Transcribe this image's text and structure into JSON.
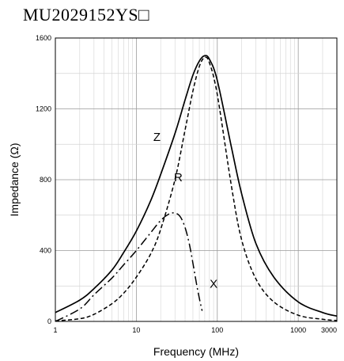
{
  "title": "MU2029152YS□",
  "chart_data": {
    "type": "line",
    "xlabel": "Frequency (MHz)",
    "ylabel": "Impedance (Ω)",
    "xscale": "log",
    "xlim": [
      1,
      3000
    ],
    "ylim": [
      0,
      1600
    ],
    "grid": true,
    "x_ticks": [
      1,
      10,
      100,
      1000,
      3000
    ],
    "x_tick_labels": [
      "1",
      "10",
      "100",
      "1000",
      "3000"
    ],
    "y_ticks": [
      0,
      400,
      800,
      1200,
      1600
    ],
    "y_tick_labels": [
      "0",
      "400",
      "800",
      "1200",
      "1600"
    ],
    "series": [
      {
        "name": "Z",
        "style": "solid",
        "x": [
          1,
          2,
          3,
          5,
          7,
          10,
          15,
          20,
          30,
          40,
          50,
          60,
          70,
          80,
          100,
          150,
          200,
          300,
          500,
          1000,
          2000,
          3000
        ],
        "y": [
          50,
          120,
          185,
          290,
          390,
          510,
          680,
          830,
          1060,
          1250,
          1390,
          1470,
          1500,
          1480,
          1360,
          980,
          720,
          440,
          250,
          110,
          50,
          30
        ]
      },
      {
        "name": "R",
        "style": "dashed",
        "x": [
          1,
          2,
          3,
          5,
          7,
          10,
          15,
          20,
          30,
          40,
          50,
          60,
          70,
          80,
          100,
          150,
          200,
          300,
          500,
          1000,
          2000,
          3000
        ],
        "y": [
          3,
          15,
          40,
          100,
          160,
          250,
          380,
          520,
          800,
          1080,
          1300,
          1440,
          1490,
          1460,
          1280,
          760,
          460,
          240,
          110,
          35,
          12,
          5
        ]
      },
      {
        "name": "X",
        "style": "dash-dot",
        "x": [
          1,
          2,
          3,
          5,
          7,
          10,
          15,
          20,
          25,
          30,
          35,
          40,
          45,
          50,
          55,
          60,
          65
        ],
        "y": [
          0,
          70,
          150,
          245,
          320,
          400,
          500,
          570,
          605,
          612,
          590,
          530,
          440,
          330,
          220,
          130,
          60
        ]
      }
    ],
    "annotations": [
      {
        "text": "Z",
        "x": 18,
        "y": 1020
      },
      {
        "text": "R",
        "x": 33,
        "y": 790
      },
      {
        "text": "X",
        "x": 90,
        "y": 190
      }
    ]
  }
}
